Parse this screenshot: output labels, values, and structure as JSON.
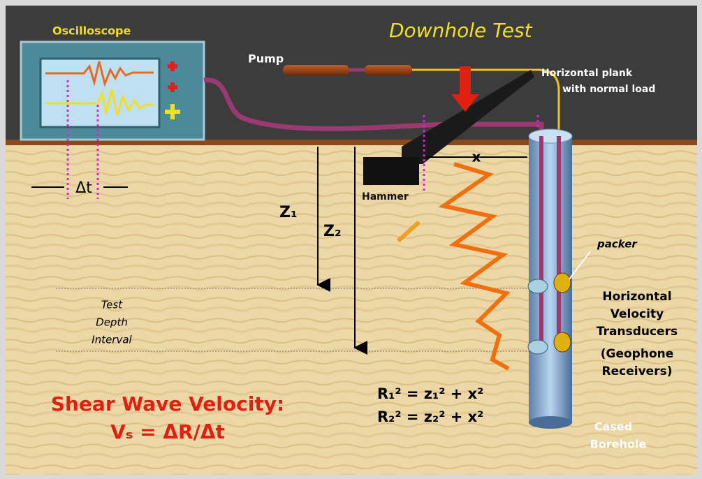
{
  "title": "Downhole Test",
  "oscilloscope": "Oscilloscope",
  "pump": "Pump",
  "plank": {
    "lines": [
      "Horizontal plank",
      "with normal load"
    ]
  },
  "x_label": "x",
  "delta_t": "Δt",
  "hammer": "Hammer",
  "z1": "Z₁",
  "z2": "Z₂",
  "packer": "packer",
  "test_depth": {
    "lines": [
      "Test",
      "Depth",
      "Interval"
    ]
  },
  "transducers": {
    "lines": [
      "Horizontal",
      "Velocity",
      "Transducers",
      "(Geophone",
      "Receivers)"
    ]
  },
  "shear": {
    "lines": [
      "Shear Wave Velocity:",
      "Vₛ = ΔR/Δt"
    ]
  },
  "equations": [
    "R₁² = z₁² + x²",
    "R₂² = z₂² + x²"
  ],
  "borehole": {
    "lines": [
      "Cased",
      "Borehole"
    ]
  }
}
